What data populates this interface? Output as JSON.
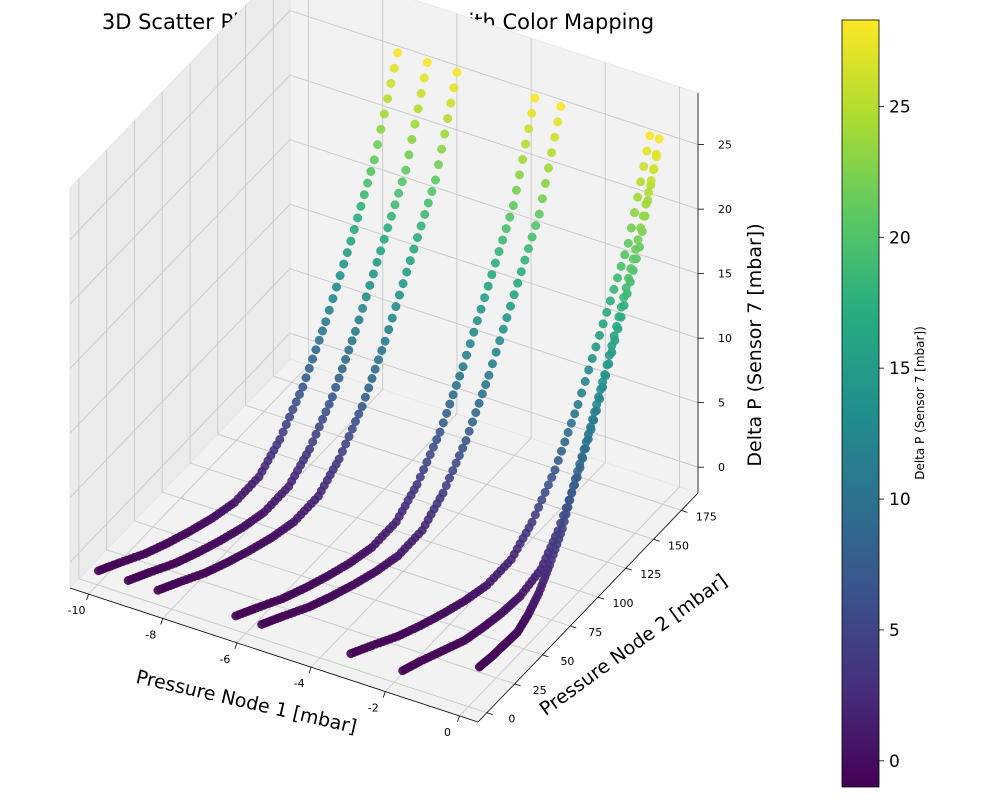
{
  "chart_data": {
    "type": "scatter",
    "subtype": "3d-scatter",
    "title": "3D Scatter Plot of P1, P2, and dP with Color Mapping",
    "xlabel": "Pressure Node 1 [mbar]",
    "ylabel": "Pressure Node 2 [mbar]",
    "zlabel": "Delta P (Sensor 7 [mbar])",
    "xlim": [
      -10.5,
      0.5
    ],
    "ylim": [
      -8,
      190
    ],
    "zlim": [
      -2,
      29
    ],
    "xticks": [
      -10,
      -8,
      -6,
      -4,
      -2,
      0
    ],
    "yticks": [
      0,
      25,
      50,
      75,
      100,
      125,
      150,
      175
    ],
    "zticks": [
      0,
      5,
      10,
      15,
      20,
      25
    ],
    "grid": true,
    "colormap": "viridis",
    "colorbar": {
      "label": "Delta P (Sensor 7 [mbar])",
      "range": [
        -1,
        28.3
      ],
      "ticks": [
        0,
        5,
        10,
        15,
        20,
        25
      ]
    },
    "series": [
      {
        "x": [
          -10.0,
          -9.7,
          -9.3,
          -9.0,
          -8.7,
          -8.4,
          -8.1,
          -7.8,
          -7.6,
          -7.4,
          -7.2,
          -7.0,
          -6.85,
          -6.7
        ],
        "y": [
          1,
          10,
          20,
          30,
          40,
          50,
          60,
          72,
          84,
          98,
          112,
          128,
          144,
          160
        ],
        "z": [
          -1,
          -0.9,
          -0.7,
          -0.5,
          -0.2,
          0.2,
          0.8,
          2,
          4,
          7,
          11,
          16,
          21,
          28
        ]
      },
      {
        "x": [
          -9.2,
          -8.9,
          -8.5,
          -8.2,
          -7.9,
          -7.6,
          -7.3,
          -7.0,
          -6.8,
          -6.6,
          -6.4,
          -6.2,
          -6.0,
          -5.9
        ],
        "y": [
          1,
          10,
          20,
          30,
          40,
          50,
          60,
          72,
          84,
          98,
          112,
          128,
          144,
          160
        ],
        "z": [
          -1,
          -0.9,
          -0.7,
          -0.5,
          -0.2,
          0.2,
          0.8,
          2,
          4,
          7,
          11,
          16,
          21,
          28
        ]
      },
      {
        "x": [
          -8.4,
          -8.1,
          -7.7,
          -7.4,
          -7.1,
          -6.8,
          -6.5,
          -6.2,
          -6.0,
          -5.8,
          -5.6,
          -5.4,
          -5.2,
          -5.1
        ],
        "y": [
          1,
          10,
          20,
          30,
          40,
          50,
          60,
          72,
          84,
          98,
          112,
          128,
          144,
          160
        ],
        "z": [
          -1,
          -0.9,
          -0.7,
          -0.5,
          -0.2,
          0.2,
          0.8,
          2,
          4,
          7,
          11,
          16,
          21,
          28
        ]
      },
      {
        "x": [
          -6.3,
          -6.0,
          -5.6,
          -5.3,
          -5.0,
          -4.7,
          -4.4,
          -4.1,
          -3.9,
          -3.7,
          -3.5,
          -3.3,
          -3.1,
          -3.0
        ],
        "y": [
          1,
          10,
          20,
          30,
          40,
          50,
          60,
          72,
          84,
          98,
          112,
          128,
          144,
          160
        ],
        "z": [
          -1,
          -0.9,
          -0.7,
          -0.5,
          -0.2,
          0.2,
          0.8,
          2,
          4,
          7,
          11,
          16,
          21,
          28
        ]
      },
      {
        "x": [
          -5.6,
          -5.3,
          -4.9,
          -4.6,
          -4.3,
          -4.0,
          -3.7,
          -3.4,
          -3.2,
          -3.0,
          -2.8,
          -2.6,
          -2.4,
          -2.3
        ],
        "y": [
          1,
          10,
          20,
          30,
          40,
          50,
          60,
          72,
          84,
          98,
          112,
          128,
          144,
          160
        ],
        "z": [
          -1,
          -0.9,
          -0.7,
          -0.5,
          -0.2,
          0.2,
          0.8,
          2,
          4,
          7,
          11,
          16,
          21,
          28
        ]
      },
      {
        "x": [
          -3.2,
          -2.9,
          -2.5,
          -2.2,
          -1.9,
          -1.6,
          -1.3,
          -1.0,
          -0.8,
          -0.6,
          -0.4,
          -0.2,
          0.0,
          0.1
        ],
        "y": [
          1,
          10,
          20,
          30,
          40,
          50,
          60,
          72,
          84,
          98,
          112,
          128,
          144,
          160
        ],
        "z": [
          -1,
          -0.9,
          -0.7,
          -0.5,
          -0.2,
          0.2,
          0.8,
          2,
          4,
          7,
          11,
          16,
          21,
          28
        ]
      },
      {
        "x": [
          -1.8,
          -1.6,
          -1.3,
          -1.0,
          -0.8,
          -0.6,
          -0.4,
          -0.2,
          -0.1,
          0.0,
          0.1,
          0.2,
          0.3,
          0.35
        ],
        "y": [
          1,
          10,
          20,
          30,
          40,
          50,
          60,
          72,
          84,
          98,
          112,
          128,
          144,
          160
        ],
        "z": [
          -1,
          -0.9,
          -0.7,
          -0.5,
          -0.2,
          0.2,
          0.8,
          2,
          4,
          7,
          11,
          16,
          21,
          28
        ]
      },
      {
        "x": [
          -0.3,
          -0.2,
          -0.1,
          0.0,
          0.05,
          0.1,
          0.15,
          0.2,
          0.25,
          0.3,
          0.32,
          0.35,
          0.38,
          0.4
        ],
        "y": [
          20,
          28,
          36,
          44,
          52,
          60,
          68,
          78,
          88,
          100,
          112,
          126,
          140,
          156
        ],
        "z": [
          -1,
          -0.8,
          -0.5,
          -0.2,
          0.5,
          1.5,
          3,
          5,
          8,
          11,
          14,
          18,
          22,
          27
        ]
      }
    ]
  }
}
